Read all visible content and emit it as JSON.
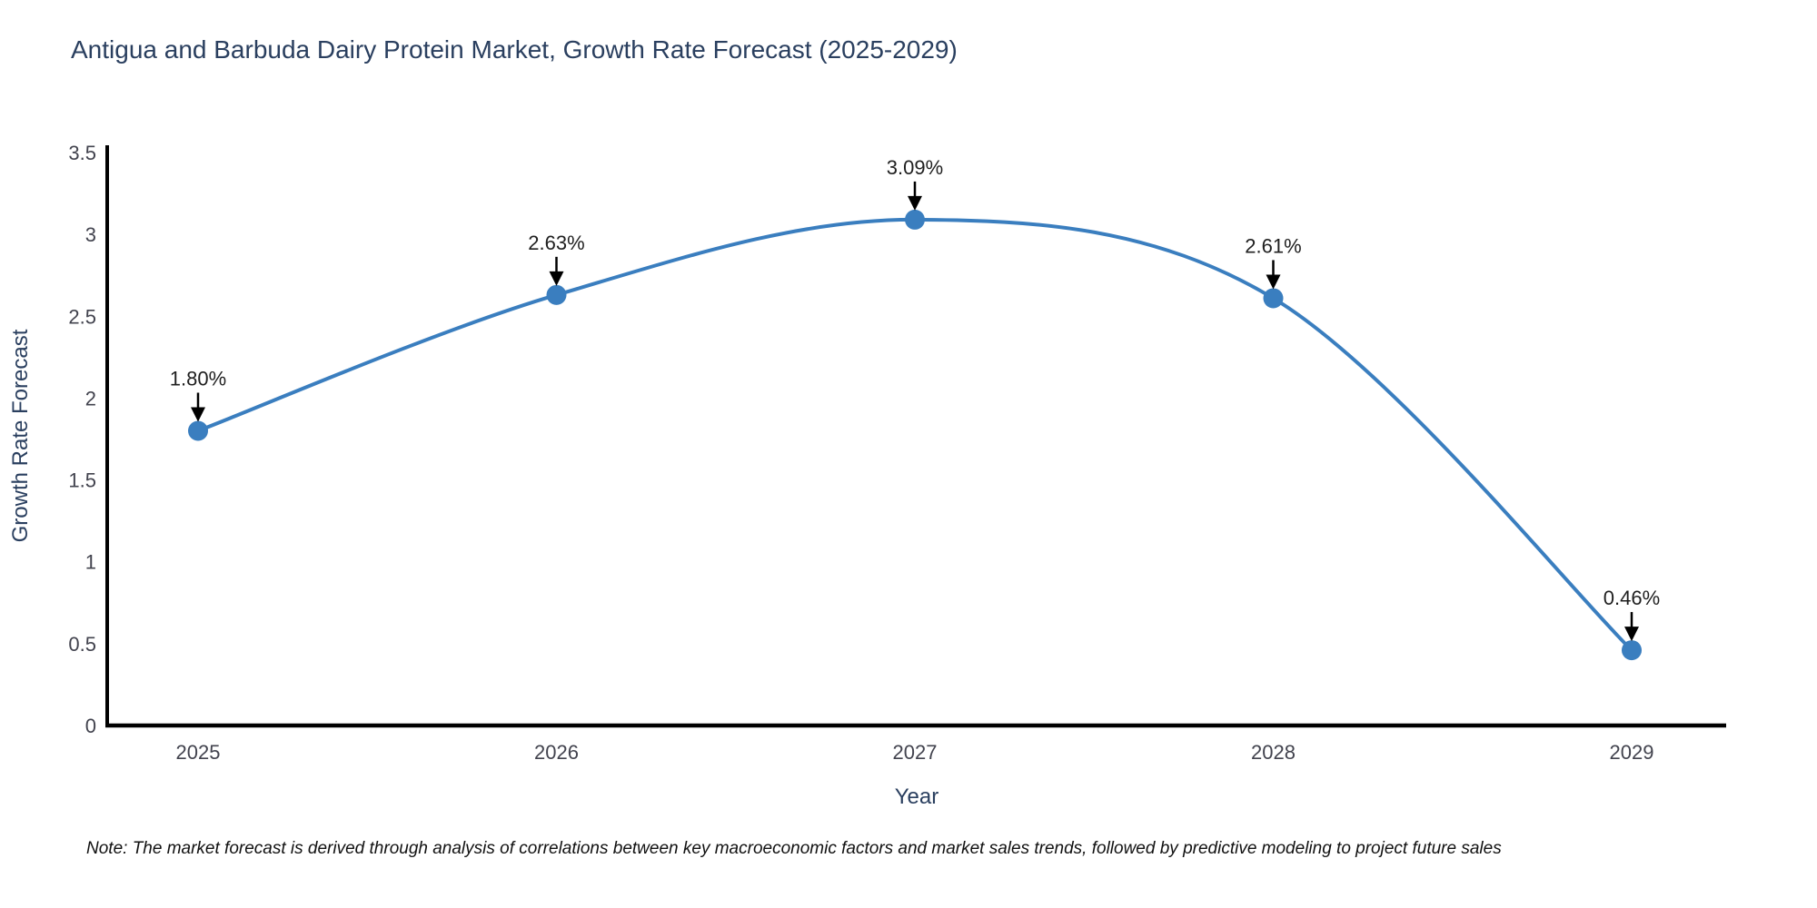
{
  "page": {
    "title": "Antigua and Barbuda Dairy Protein Market, Growth Rate Forecast (2025-2029)",
    "note": "Note: The market forecast is derived through analysis of correlations between key macroeconomic factors and market sales trends, followed by predictive modeling to project future sales"
  },
  "chart_data": {
    "type": "line",
    "title": "Antigua and Barbuda Dairy Protein Market, Growth Rate Forecast (2025-2029)",
    "x": [
      2025,
      2026,
      2027,
      2028,
      2029
    ],
    "xtick_labels": [
      "2025",
      "2026",
      "2027",
      "2028",
      "2029"
    ],
    "series": [
      {
        "name": "Growth Rate Forecast",
        "values": [
          1.8,
          2.63,
          3.09,
          2.61,
          0.46
        ]
      }
    ],
    "point_labels": [
      "1.80%",
      "2.63%",
      "3.09%",
      "2.61%",
      "0.46%"
    ],
    "xlabel": "Year",
    "ylabel": "Growth Rate Forecast",
    "ylim": [
      0,
      3.5
    ],
    "yticks": [
      0,
      0.5,
      1,
      1.5,
      2,
      2.5,
      3,
      3.5
    ],
    "ytick_labels": [
      "0",
      "0.5",
      "1",
      "1.5",
      "2",
      "2.5",
      "3",
      "3.5"
    ],
    "line_shape": "spline",
    "grid": false,
    "legend_position": "none",
    "colors": {
      "line": "#3a7ebf",
      "marker": "#3a7ebf",
      "annotation_arrow": "#000000",
      "annotation_text": "#1f1f1f",
      "axis_line": "#000000",
      "tick_label": "#42434e",
      "axis_title": "#2a3f5f",
      "chart_title": "#2a3f5f",
      "note_text": "#111111",
      "background": "#ffffff"
    }
  }
}
